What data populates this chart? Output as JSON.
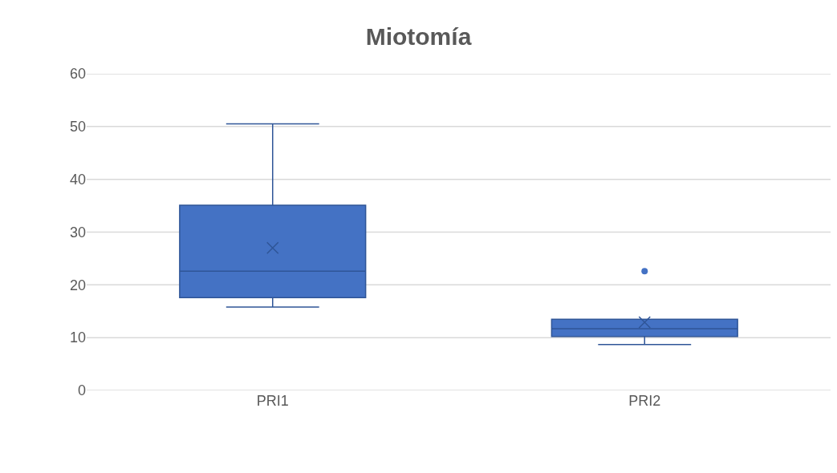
{
  "chart_data": {
    "type": "box",
    "title": "Miotomía",
    "categories": [
      "PRI1",
      "PRI2"
    ],
    "color": "#4472c4",
    "boxes": [
      {
        "low": 15.8,
        "q1": 17.6,
        "median": 22.6,
        "q3": 35.1,
        "high": 50.5,
        "mean": 27.0
      },
      {
        "low": 8.7,
        "q1": 10.2,
        "median": 11.7,
        "q3": 13.5,
        "high": 13.5,
        "mean": 12.9,
        "outliers": [
          22.6
        ]
      }
    ],
    "ylim": [
      0,
      60
    ],
    "yticks": [
      0,
      10,
      20,
      30,
      40,
      50,
      60
    ],
    "grid": "y"
  }
}
